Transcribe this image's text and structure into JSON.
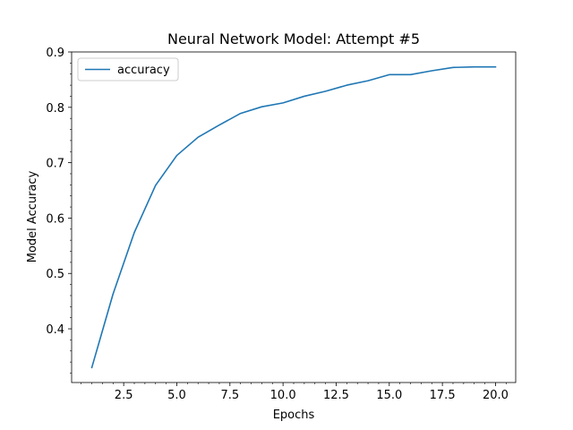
{
  "chart_data": {
    "type": "line",
    "title": "Neural Network Model: Attempt #5",
    "xlabel": "Epochs",
    "ylabel": "Model Accuracy",
    "xlim": [
      0.05,
      20.95
    ],
    "ylim": [
      0.303,
      0.9
    ],
    "x_ticks": [
      2.5,
      5.0,
      7.5,
      10.0,
      12.5,
      15.0,
      17.5,
      20.0
    ],
    "x_tick_labels": [
      "2.5",
      "5.0",
      "7.5",
      "10.0",
      "12.5",
      "15.0",
      "17.5",
      "20.0"
    ],
    "x_minor_ticks": [
      0.5,
      1.0,
      1.5,
      2.0,
      3.0,
      3.5,
      4.0,
      4.5,
      5.5,
      6.0,
      6.5,
      7.0,
      8.0,
      8.5,
      9.0,
      9.5,
      10.5,
      11.0,
      11.5,
      12.0,
      13.0,
      13.5,
      14.0,
      14.5,
      15.5,
      16.0,
      16.5,
      17.0,
      18.0,
      18.5,
      19.0,
      19.5,
      20.5
    ],
    "y_ticks": [
      0.4,
      0.5,
      0.6,
      0.7,
      0.8,
      0.9
    ],
    "y_tick_labels": [
      "0.4",
      "0.5",
      "0.6",
      "0.7",
      "0.8",
      "0.9"
    ],
    "y_minor_ticks": [
      0.32,
      0.34,
      0.36,
      0.38,
      0.42,
      0.44,
      0.46,
      0.48,
      0.52,
      0.54,
      0.56,
      0.58,
      0.62,
      0.64,
      0.66,
      0.68,
      0.72,
      0.74,
      0.76,
      0.78,
      0.82,
      0.84,
      0.86,
      0.88
    ],
    "grid": false,
    "legend_position": "top-left",
    "series": [
      {
        "name": "accuracy",
        "color": "#1f77b4",
        "x": [
          1,
          2,
          3,
          4,
          5,
          6,
          7,
          8,
          9,
          10,
          11,
          12,
          13,
          14,
          15,
          16,
          17,
          18,
          19,
          20
        ],
        "values": [
          0.33,
          0.463,
          0.574,
          0.659,
          0.713,
          0.746,
          0.768,
          0.789,
          0.801,
          0.808,
          0.82,
          0.829,
          0.84,
          0.848,
          0.859,
          0.859,
          0.866,
          0.872,
          0.873,
          0.873
        ]
      }
    ]
  }
}
